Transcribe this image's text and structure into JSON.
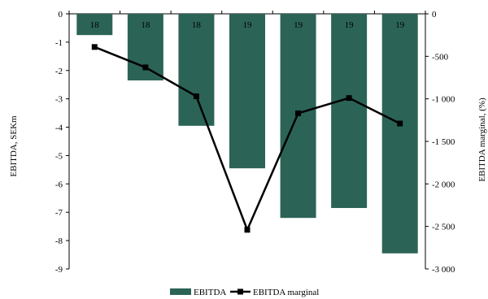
{
  "chart_data": {
    "type": "bar",
    "categories": [
      "",
      "",
      "",
      "",
      "",
      "",
      ""
    ],
    "bar_labels": [
      "18",
      "18",
      "18",
      "19",
      "19",
      "19",
      "19"
    ],
    "series": [
      {
        "name": "EBITDA",
        "type": "bar",
        "axis": "left",
        "color": "#2b6457",
        "values": [
          -0.75,
          -2.35,
          -3.95,
          -5.45,
          -7.2,
          -6.85,
          -8.45
        ]
      },
      {
        "name": "EBITDA marginal",
        "type": "line",
        "axis": "right",
        "color": "#000000",
        "values": [
          -390,
          -630,
          -970,
          -2540,
          -1170,
          -990,
          -1290
        ]
      }
    ],
    "title": "",
    "ylabel": "EBITDA, SEKm",
    "y2label": "EBITDA marginal, (%)",
    "ylim": [
      -9,
      0
    ],
    "y2lim": [
      -3000,
      0
    ],
    "yticks": [
      "0",
      "-1",
      "-2",
      "-3",
      "-4",
      "-5",
      "-6",
      "-7",
      "-8",
      "-9"
    ],
    "y2ticks": [
      "0",
      "-500",
      "-1 000",
      "-1 500",
      "-2 000",
      "-2 500",
      "-3 000"
    ],
    "grid": false,
    "legend": "bottom"
  }
}
